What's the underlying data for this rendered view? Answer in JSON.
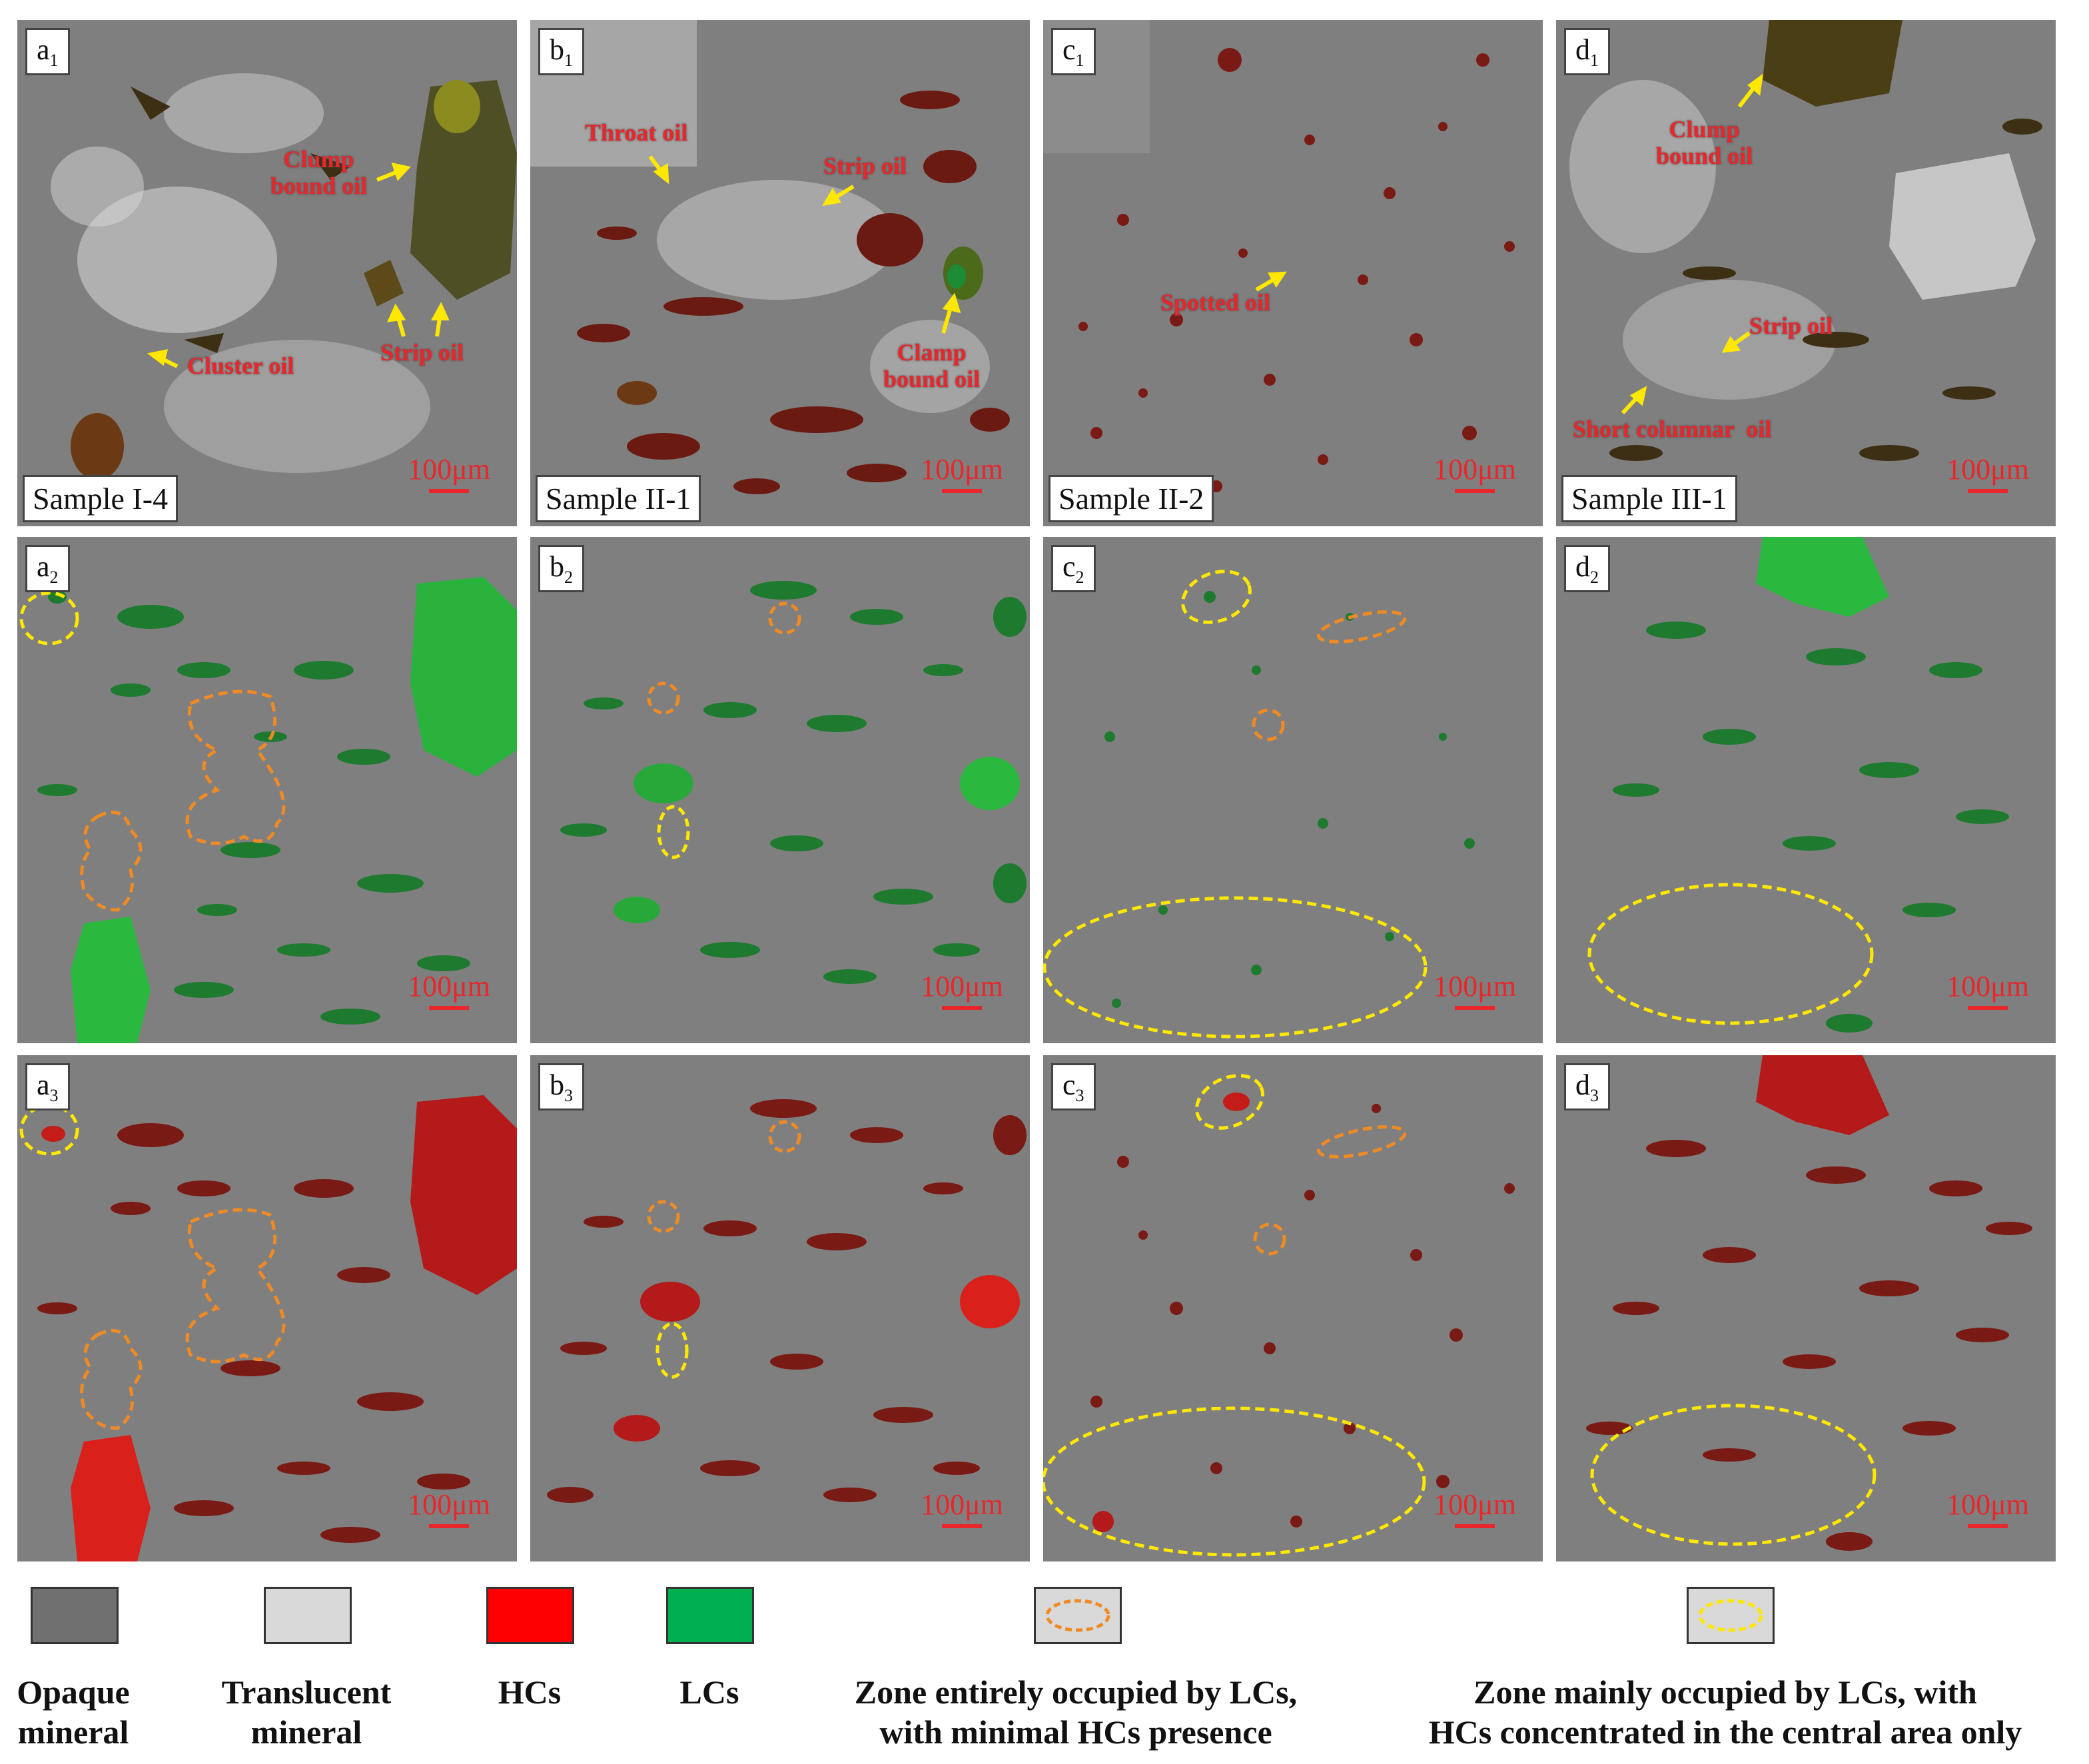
{
  "colors": {
    "opaque": "#707070",
    "translucent": "#d9d9d9",
    "hcs": "#ff0000",
    "lcs": "#00b050",
    "zone_orange": "#f08a24",
    "zone_yellow": "#ffe800"
  },
  "panels": {
    "a1": {
      "letter": "a",
      "sub": "1",
      "sample": "Sample I-4",
      "scale": "100μm",
      "notes": {
        "clump": "Clump\nbound oil",
        "strip": "Strip oil",
        "cluster": "Cluster oil"
      }
    },
    "b1": {
      "letter": "b",
      "sub": "1",
      "sample": "Sample II-1",
      "scale": "100μm",
      "notes": {
        "throat": "Throat oil",
        "strip": "Strip oil",
        "clump": "Clamp\nbound oil"
      }
    },
    "c1": {
      "letter": "c",
      "sub": "1",
      "sample": "Sample II-2",
      "scale": "100μm",
      "notes": {
        "spotted": "Spotted oil"
      }
    },
    "d1": {
      "letter": "d",
      "sub": "1",
      "sample": "Sample III-1",
      "scale": "100μm",
      "notes": {
        "clump": "Clump\nbound oil",
        "strip": "Strip oil",
        "short": "Short columnar  oil"
      }
    },
    "a2": {
      "letter": "a",
      "sub": "2",
      "scale": "100μm"
    },
    "b2": {
      "letter": "b",
      "sub": "2",
      "scale": "100μm"
    },
    "c2": {
      "letter": "c",
      "sub": "2",
      "scale": "100μm"
    },
    "d2": {
      "letter": "d",
      "sub": "2",
      "scale": "100μm"
    },
    "a3": {
      "letter": "a",
      "sub": "3",
      "scale": "100μm"
    },
    "b3": {
      "letter": "b",
      "sub": "3",
      "scale": "100μm"
    },
    "c3": {
      "letter": "c",
      "sub": "3",
      "scale": "100μm"
    },
    "d3": {
      "letter": "d",
      "sub": "3",
      "scale": "100μm"
    }
  },
  "legend": {
    "opaque": "Opaque\nmineral",
    "translucent": "Translucent\nmineral",
    "hcs": "HCs",
    "lcs": "LCs",
    "orange_zone": "Zone entirely occupied by LCs,\nwith minimal HCs presence",
    "yellow_zone": "Zone mainly occupied by LCs, with\nHCs concentrated in the central area only"
  }
}
